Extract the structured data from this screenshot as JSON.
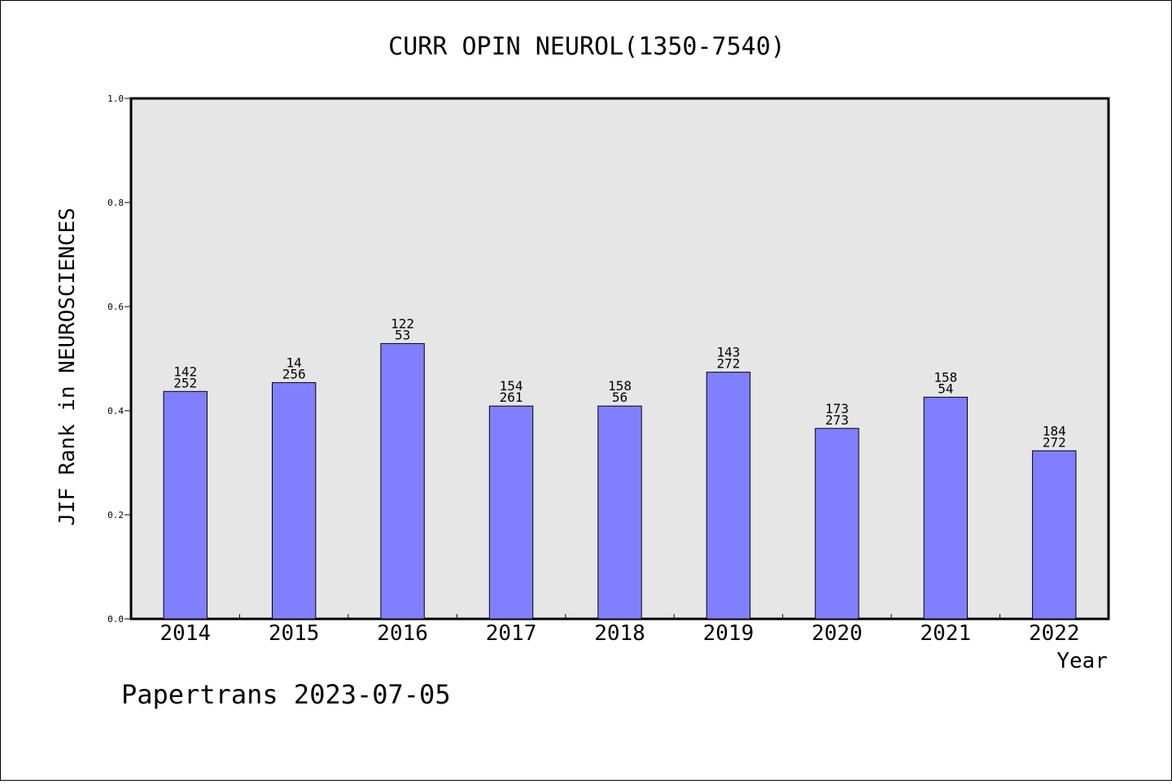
{
  "chart_data": {
    "type": "bar",
    "title": "CURR OPIN NEUROL(1350-7540)",
    "xlabel": "Year",
    "ylabel": "JIF Rank in NEUROSCIENCES",
    "categories": [
      "2014",
      "2015",
      "2016",
      "2017",
      "2018",
      "2019",
      "2020",
      "2021",
      "2022"
    ],
    "values": [
      0.437,
      0.454,
      0.529,
      0.409,
      0.409,
      0.474,
      0.366,
      0.426,
      0.323
    ],
    "labels_top": [
      "142",
      "14",
      "122",
      "154",
      "158",
      "143",
      "173",
      "158",
      "184"
    ],
    "labels_bottom": [
      "252",
      "256",
      "53",
      "261",
      "56",
      "272",
      "273",
      "54",
      "272"
    ],
    "ylim": [
      0,
      1
    ],
    "yticks": [
      "0.0",
      "0.2",
      "0.4",
      "0.6",
      "0.8",
      "1.0"
    ],
    "grid": false,
    "colors": {
      "bar": "#8080ff",
      "plot_bg": "#e6e6e6"
    }
  },
  "footer": {
    "watermark": "Papertrans 2023-07-05"
  }
}
